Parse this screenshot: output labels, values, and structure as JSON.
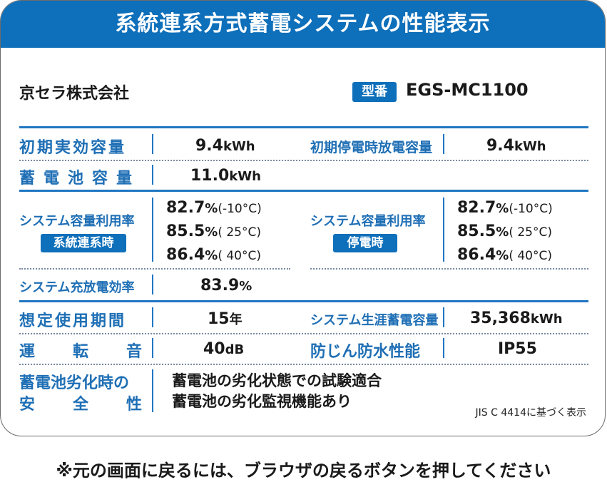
{
  "title": "系統連系方式蓄電システムの性能表示",
  "company": "京セラ株式会社",
  "model": {
    "badge": "型番",
    "value": "EGS-MC1100"
  },
  "rows": {
    "initial_capacity": {
      "label": "初期実効容量",
      "value": "9.4",
      "unit": "kWh"
    },
    "outage_capacity": {
      "label": "初期停電時放電容量",
      "value": "9.4",
      "unit": "kWh"
    },
    "battery_capacity": {
      "label": "蓄電池容量",
      "value": "11.0",
      "unit": "kWh"
    },
    "util_grid": {
      "label": "システム容量利用率",
      "badge": "系統連系時",
      "lines": [
        {
          "value": "82.7",
          "unit": "%",
          "temp": "(-10°C)"
        },
        {
          "value": "85.5",
          "unit": "%",
          "temp": "( 25°C)"
        },
        {
          "value": "86.4",
          "unit": "%",
          "temp": "( 40°C)"
        }
      ]
    },
    "util_outage": {
      "label": "システム容量利用率",
      "badge": "停電時",
      "lines": [
        {
          "value": "82.7",
          "unit": "%",
          "temp": "(-10°C)"
        },
        {
          "value": "85.5",
          "unit": "%",
          "temp": "( 25°C)"
        },
        {
          "value": "86.4",
          "unit": "%",
          "temp": "( 40°C)"
        }
      ]
    },
    "charge_eff": {
      "label": "システム充放電効率",
      "value": "83.9",
      "unit": "%"
    },
    "life": {
      "label": "想定使用期間",
      "value": "15",
      "unit": "年"
    },
    "lifetime_capacity": {
      "label": "システム生涯蓄電容量",
      "value": "35,368",
      "unit": "kWh"
    },
    "sound": {
      "label_chars": [
        "運",
        "転",
        "音"
      ],
      "value": "40",
      "unit": "dB"
    },
    "protection": {
      "label": "防じん防水性能",
      "value": "IP55"
    },
    "degradation": {
      "label_line1": "蓄電池劣化時の",
      "label_line2_chars": [
        "安",
        "全",
        "性"
      ],
      "text_line1": "蓄電池の劣化状態での試験適合",
      "text_line2": "蓄電池の劣化監視機能あり"
    }
  },
  "jis_note": "JIS C 4414に基づく表示",
  "footer": "※元の画面に戻るには、ブラウザの戻るボタンを押してください"
}
